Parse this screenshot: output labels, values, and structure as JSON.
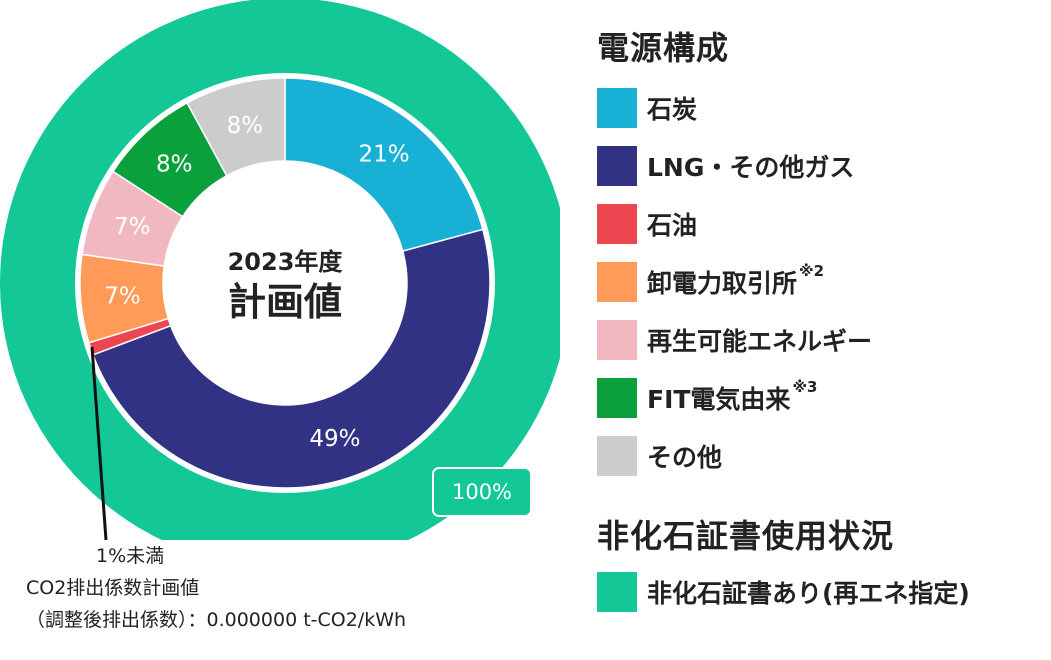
{
  "chart_data": {
    "type": "pie",
    "subtype": "nested-donut",
    "center_title_line1": "2023年度",
    "center_title_line2": "計画値",
    "inner_ring": [
      {
        "name": "石炭",
        "value": 21,
        "label": "21%",
        "color": "#18b0d4"
      },
      {
        "name": "LNG・その他ガス",
        "value": 49,
        "label": "49%",
        "color": "#313284"
      },
      {
        "name": "石油",
        "value": 1,
        "label": "",
        "color": "#ec4651"
      },
      {
        "name": "卸電力取引所",
        "value": 7,
        "label": "7%",
        "color": "#ff9a58"
      },
      {
        "name": "再生可能エネルギー",
        "value": 7,
        "label": "7%",
        "color": "#f2b8c2"
      },
      {
        "name": "FIT電気由来",
        "value": 8,
        "label": "8%",
        "color": "#0aa13c"
      },
      {
        "name": "その他",
        "value": 8,
        "label": "8%",
        "color": "#cccccc"
      }
    ],
    "outer_ring": [
      {
        "name": "非化石証書あり(再エネ指定)",
        "value": 100,
        "label": "100%",
        "color": "#13c796"
      }
    ]
  },
  "legend": {
    "title": "電源構成",
    "items": [
      {
        "label": "石炭",
        "sup": "",
        "color": "#18b0d4"
      },
      {
        "label": "LNG・その他ガス",
        "sup": "",
        "color": "#313284"
      },
      {
        "label": "石油",
        "sup": "",
        "color": "#ec4651"
      },
      {
        "label": "卸電力取引所",
        "sup": "※2",
        "color": "#ff9a58"
      },
      {
        "label": "再生可能エネルギー",
        "sup": "",
        "color": "#f2b8c2"
      },
      {
        "label": "FIT電気由来",
        "sup": "※3",
        "color": "#0aa13c"
      },
      {
        "label": "その他",
        "sup": "",
        "color": "#cccccc"
      }
    ]
  },
  "legend2": {
    "title": "非化石証書使用状況",
    "items": [
      {
        "label": "非化石証書あり(再エネ指定)",
        "color": "#13c796"
      }
    ]
  },
  "annotation": {
    "small_share": "1%未満",
    "emission_line1": "CO2排出係数計画値",
    "emission_line2": "（調整後排出係数）：0.000000 t-CO2/kWh"
  }
}
